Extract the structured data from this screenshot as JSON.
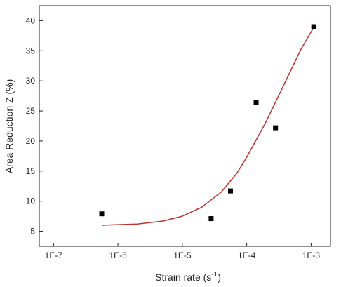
{
  "chart_data": {
    "type": "scatter",
    "xlabel": "Strain rate (s",
    "xlabel_sup": "-1",
    "xlabel_tail": ")",
    "ylabel": "Area Reduction Z (%)",
    "x_scale": "log",
    "xlim": [
      6e-08,
      0.002
    ],
    "ylim": [
      2.5,
      42.5
    ],
    "x_ticks": [
      1e-07,
      1e-06,
      1e-05,
      0.0001,
      0.001
    ],
    "x_tick_labels": [
      "1E-7",
      "1E-6",
      "1E-5",
      "1E-4",
      "1E-3"
    ],
    "y_ticks": [
      5,
      10,
      15,
      20,
      25,
      30,
      35,
      40
    ],
    "y_tick_labels": [
      "5",
      "10",
      "15",
      "20",
      "25",
      "30",
      "35",
      "40"
    ],
    "grid": false,
    "series": [
      {
        "kind": "points",
        "marker": "square",
        "color": "#000000",
        "x": [
          5.6e-07,
          2.8e-05,
          5.6e-05,
          0.00014,
          0.00028,
          0.0011
        ],
        "y": [
          7.9,
          7.1,
          11.7,
          26.4,
          22.2,
          39.0
        ]
      },
      {
        "kind": "fit-line",
        "color": "#c0312b",
        "x": [
          5.6e-07,
          1e-06,
          2e-06,
          5e-06,
          1e-05,
          2e-05,
          4e-05,
          7e-05,
          0.0001,
          0.0002,
          0.0004,
          0.0007,
          0.0011
        ],
        "y": [
          6.0,
          6.1,
          6.2,
          6.7,
          7.5,
          9.0,
          11.5,
          14.6,
          17.3,
          23.2,
          29.9,
          35.3,
          38.9
        ]
      }
    ]
  }
}
